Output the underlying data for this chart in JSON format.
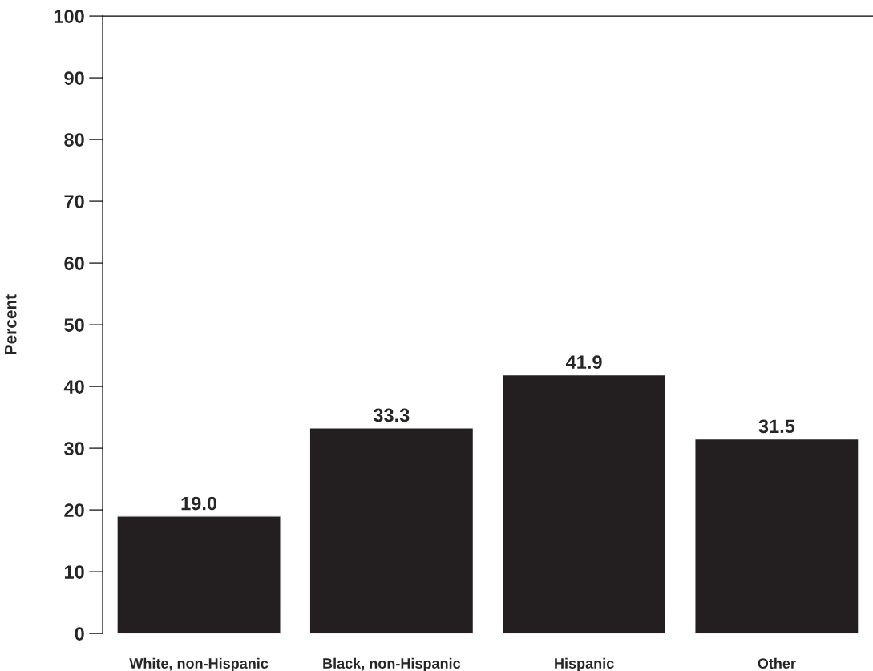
{
  "chart_data": {
    "type": "bar",
    "ylabel": "Percent",
    "categories": [
      "White, non-Hispanic",
      "Black, non-Hispanic",
      "Hispanic",
      "Other"
    ],
    "values": [
      19.0,
      33.3,
      41.9,
      31.5
    ],
    "color": "#231f20",
    "ylim": [
      0,
      100
    ],
    "yticks": [
      0,
      10,
      20,
      30,
      40,
      50,
      60,
      70,
      80,
      90,
      100
    ],
    "value_labels": [
      "19.0",
      "33.3",
      "41.9",
      "31.5"
    ],
    "grid": false,
    "legend": false
  }
}
